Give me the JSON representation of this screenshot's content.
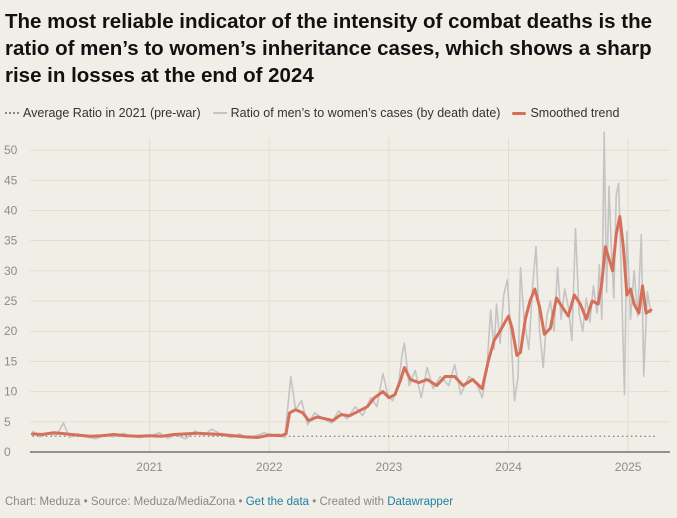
{
  "title": "The most reliable indicator of the intensity of combat deaths is the ratio of men’s to women’s inheritance cases, which shows a sharp rise in losses at the end of 2024",
  "legend": {
    "baseline_label": "Average Ratio in 2021 (pre-war)",
    "raw_label": "Ratio of men’s to women’s cases (by death date)",
    "smooth_label": "Smoothed trend"
  },
  "footer": {
    "credit": "Chart: Meduza • Source: Meduza/MediaZona • ",
    "data_link": "Get the data",
    "sep": " • Created with ",
    "tool_link": "Datawrapper"
  },
  "colors": {
    "background": "#f1eee7",
    "raw_line": "#c4c4c4",
    "smooth_line": "#d4705a",
    "baseline": "#888888",
    "link": "#1d81a2"
  },
  "chart_data": {
    "type": "line",
    "title": "The most reliable indicator of the intensity of combat deaths is the ratio of men’s to women’s inheritance cases, which shows a sharp rise in losses at the end of 2024",
    "xlabel": "",
    "ylabel": "",
    "xlim": [
      2020.0,
      2025.35
    ],
    "ylim": [
      0,
      52
    ],
    "yticks": [
      0,
      5,
      10,
      15,
      20,
      25,
      30,
      35,
      40,
      45,
      50
    ],
    "xticks": [
      {
        "label": "2021",
        "value": 2021.0
      },
      {
        "label": "2022",
        "value": 2022.0
      },
      {
        "label": "2023",
        "value": 2023.0
      },
      {
        "label": "2024",
        "value": 2024.0
      },
      {
        "label": "2025",
        "value": 2025.0
      }
    ],
    "grid": true,
    "legend_position": "top",
    "baseline": {
      "name": "Average Ratio in 2021 (pre-war)",
      "value": 2.6,
      "style": "dotted"
    },
    "series": [
      {
        "name": "Ratio of men’s to women’s cases (by death date)",
        "points": [
          [
            2020.02,
            3.5
          ],
          [
            2020.08,
            2.5
          ],
          [
            2020.15,
            3.0
          ],
          [
            2020.22,
            2.7
          ],
          [
            2020.28,
            4.8
          ],
          [
            2020.33,
            2.4
          ],
          [
            2020.4,
            3.0
          ],
          [
            2020.47,
            2.5
          ],
          [
            2020.55,
            2.2
          ],
          [
            2020.62,
            2.8
          ],
          [
            2020.7,
            2.5
          ],
          [
            2020.78,
            3.1
          ],
          [
            2020.85,
            2.6
          ],
          [
            2020.92,
            2.4
          ],
          [
            2021.0,
            2.6
          ],
          [
            2021.08,
            3.2
          ],
          [
            2021.15,
            2.3
          ],
          [
            2021.22,
            2.8
          ],
          [
            2021.3,
            2.2
          ],
          [
            2021.38,
            3.5
          ],
          [
            2021.45,
            2.7
          ],
          [
            2021.52,
            3.8
          ],
          [
            2021.6,
            2.9
          ],
          [
            2021.68,
            2.4
          ],
          [
            2021.75,
            3.0
          ],
          [
            2021.82,
            2.3
          ],
          [
            2021.9,
            2.8
          ],
          [
            2021.96,
            3.2
          ],
          [
            2022.02,
            2.8
          ],
          [
            2022.08,
            3.0
          ],
          [
            2022.13,
            2.4
          ],
          [
            2022.18,
            12.5
          ],
          [
            2022.22,
            7.0
          ],
          [
            2022.27,
            8.5
          ],
          [
            2022.32,
            4.5
          ],
          [
            2022.38,
            6.5
          ],
          [
            2022.45,
            5.5
          ],
          [
            2022.52,
            4.8
          ],
          [
            2022.58,
            6.8
          ],
          [
            2022.65,
            5.5
          ],
          [
            2022.72,
            7.5
          ],
          [
            2022.78,
            6.0
          ],
          [
            2022.85,
            9.0
          ],
          [
            2022.9,
            7.5
          ],
          [
            2022.95,
            13.0
          ],
          [
            2022.99,
            9.5
          ],
          [
            2023.03,
            8.5
          ],
          [
            2023.08,
            11.0
          ],
          [
            2023.11,
            16.0
          ],
          [
            2023.13,
            18.0
          ],
          [
            2023.17,
            11.0
          ],
          [
            2023.22,
            13.5
          ],
          [
            2023.27,
            9.0
          ],
          [
            2023.32,
            14.0
          ],
          [
            2023.37,
            10.5
          ],
          [
            2023.43,
            12.5
          ],
          [
            2023.5,
            11.0
          ],
          [
            2023.55,
            14.5
          ],
          [
            2023.6,
            9.5
          ],
          [
            2023.67,
            12.5
          ],
          [
            2023.73,
            11.5
          ],
          [
            2023.78,
            9.0
          ],
          [
            2023.82,
            14.0
          ],
          [
            2023.85,
            23.5
          ],
          [
            2023.88,
            17.0
          ],
          [
            2023.9,
            24.5
          ],
          [
            2023.93,
            18.0
          ],
          [
            2023.96,
            26.0
          ],
          [
            2023.99,
            28.5
          ],
          [
            2024.02,
            19.5
          ],
          [
            2024.05,
            8.5
          ],
          [
            2024.08,
            12.5
          ],
          [
            2024.1,
            30.5
          ],
          [
            2024.13,
            22.0
          ],
          [
            2024.17,
            17.0
          ],
          [
            2024.2,
            27.0
          ],
          [
            2024.23,
            34.0
          ],
          [
            2024.26,
            20.0
          ],
          [
            2024.29,
            14.0
          ],
          [
            2024.32,
            22.5
          ],
          [
            2024.35,
            25.0
          ],
          [
            2024.38,
            20.0
          ],
          [
            2024.41,
            30.5
          ],
          [
            2024.44,
            22.0
          ],
          [
            2024.47,
            27.0
          ],
          [
            2024.5,
            24.0
          ],
          [
            2024.53,
            18.5
          ],
          [
            2024.56,
            37.0
          ],
          [
            2024.59,
            23.0
          ],
          [
            2024.62,
            20.0
          ],
          [
            2024.65,
            25.5
          ],
          [
            2024.68,
            21.5
          ],
          [
            2024.71,
            27.5
          ],
          [
            2024.74,
            23.0
          ],
          [
            2024.76,
            31.0
          ],
          [
            2024.78,
            22.0
          ],
          [
            2024.8,
            53.0
          ],
          [
            2024.82,
            26.5
          ],
          [
            2024.84,
            44.0
          ],
          [
            2024.86,
            33.5
          ],
          [
            2024.88,
            25.5
          ],
          [
            2024.9,
            42.5
          ],
          [
            2024.92,
            44.5
          ],
          [
            2024.94,
            31.0
          ],
          [
            2024.97,
            9.5
          ],
          [
            2024.99,
            36.5
          ],
          [
            2025.02,
            22.0
          ],
          [
            2025.05,
            30.0
          ],
          [
            2025.08,
            22.5
          ],
          [
            2025.11,
            36.0
          ],
          [
            2025.13,
            12.5
          ],
          [
            2025.16,
            26.5
          ],
          [
            2025.19,
            23.0
          ]
        ]
      },
      {
        "name": "Smoothed trend",
        "points": [
          [
            2020.02,
            3.0
          ],
          [
            2020.1,
            2.9
          ],
          [
            2020.2,
            3.2
          ],
          [
            2020.3,
            3.0
          ],
          [
            2020.4,
            2.8
          ],
          [
            2020.5,
            2.6
          ],
          [
            2020.6,
            2.7
          ],
          [
            2020.7,
            2.9
          ],
          [
            2020.8,
            2.7
          ],
          [
            2020.9,
            2.6
          ],
          [
            2021.0,
            2.7
          ],
          [
            2021.1,
            2.6
          ],
          [
            2021.2,
            2.9
          ],
          [
            2021.3,
            3.0
          ],
          [
            2021.4,
            3.1
          ],
          [
            2021.5,
            3.0
          ],
          [
            2021.6,
            2.9
          ],
          [
            2021.7,
            2.7
          ],
          [
            2021.8,
            2.5
          ],
          [
            2021.9,
            2.4
          ],
          [
            2022.0,
            2.8
          ],
          [
            2022.1,
            2.7
          ],
          [
            2022.14,
            3.0
          ],
          [
            2022.17,
            6.5
          ],
          [
            2022.22,
            7.0
          ],
          [
            2022.28,
            6.5
          ],
          [
            2022.33,
            5.2
          ],
          [
            2022.4,
            5.8
          ],
          [
            2022.47,
            5.5
          ],
          [
            2022.53,
            5.2
          ],
          [
            2022.6,
            6.2
          ],
          [
            2022.67,
            6.0
          ],
          [
            2022.75,
            6.8
          ],
          [
            2022.82,
            7.5
          ],
          [
            2022.88,
            9.0
          ],
          [
            2022.95,
            10.0
          ],
          [
            2023.0,
            9.0
          ],
          [
            2023.05,
            9.5
          ],
          [
            2023.1,
            12.0
          ],
          [
            2023.13,
            14.0
          ],
          [
            2023.18,
            12.0
          ],
          [
            2023.25,
            11.5
          ],
          [
            2023.32,
            12.0
          ],
          [
            2023.4,
            11.0
          ],
          [
            2023.47,
            12.5
          ],
          [
            2023.55,
            12.5
          ],
          [
            2023.62,
            11.0
          ],
          [
            2023.7,
            12.0
          ],
          [
            2023.78,
            10.5
          ],
          [
            2023.83,
            15.0
          ],
          [
            2023.88,
            18.5
          ],
          [
            2023.93,
            20.0
          ],
          [
            2023.97,
            21.5
          ],
          [
            2024.0,
            22.5
          ],
          [
            2024.03,
            20.5
          ],
          [
            2024.07,
            16.0
          ],
          [
            2024.1,
            16.5
          ],
          [
            2024.14,
            22.0
          ],
          [
            2024.18,
            25.0
          ],
          [
            2024.22,
            27.0
          ],
          [
            2024.26,
            24.0
          ],
          [
            2024.3,
            19.5
          ],
          [
            2024.35,
            20.5
          ],
          [
            2024.4,
            25.5
          ],
          [
            2024.45,
            24.0
          ],
          [
            2024.5,
            22.5
          ],
          [
            2024.55,
            26.0
          ],
          [
            2024.6,
            24.5
          ],
          [
            2024.65,
            22.0
          ],
          [
            2024.7,
            25.0
          ],
          [
            2024.75,
            24.5
          ],
          [
            2024.78,
            28.0
          ],
          [
            2024.81,
            34.0
          ],
          [
            2024.84,
            32.0
          ],
          [
            2024.87,
            30.0
          ],
          [
            2024.9,
            36.0
          ],
          [
            2024.93,
            39.0
          ],
          [
            2024.96,
            34.0
          ],
          [
            2024.99,
            26.0
          ],
          [
            2025.02,
            27.0
          ],
          [
            2025.05,
            24.5
          ],
          [
            2025.09,
            23.0
          ],
          [
            2025.12,
            27.5
          ],
          [
            2025.15,
            23.0
          ],
          [
            2025.19,
            23.5
          ]
        ]
      }
    ]
  }
}
